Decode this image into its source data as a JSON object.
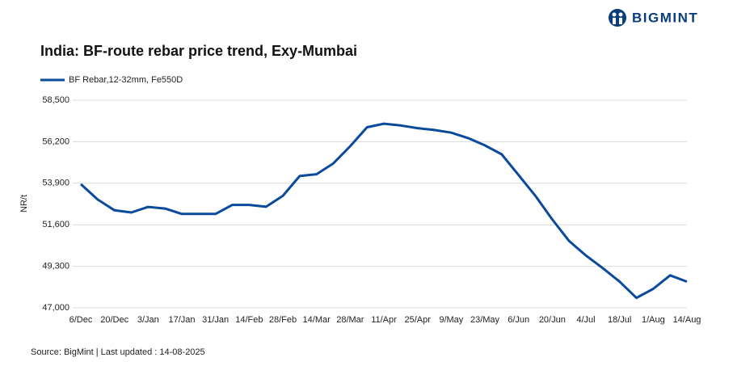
{
  "brand": "BIGMINT",
  "chart_data": {
    "type": "line",
    "title": "India: BF-route rebar price trend, Exy-Mumbai",
    "y_label": "NR/t",
    "source": "Source: BigMint | Last updated : 14-08-2025",
    "categories": [
      "6/Dec",
      null,
      "20/Dec",
      null,
      "3/Jan",
      null,
      "17/Jan",
      null,
      "31/Jan",
      null,
      "14/Feb",
      null,
      "28/Feb",
      null,
      "14/Mar",
      null,
      "28/Mar",
      null,
      "11/Apr",
      null,
      "25/Apr",
      null,
      "9/May",
      null,
      "23/May",
      null,
      "6/Jun",
      null,
      "20/Jun",
      null,
      "4/Jul",
      null,
      "18/Jul",
      null,
      "1/Aug",
      null,
      "14/Aug"
    ],
    "series": [
      {
        "name": "BF Rebar,12-32mm, Fe550D",
        "color": "#0a4a9c",
        "values": [
          53850,
          53000,
          52400,
          52280,
          52590,
          52500,
          52200,
          52200,
          52200,
          52700,
          52700,
          52600,
          53200,
          54300,
          54400,
          55000,
          55950,
          57000,
          57200,
          57100,
          56950,
          56850,
          56700,
          56400,
          56000,
          55500,
          54350,
          53200,
          51900,
          50700,
          49900,
          49200,
          48450,
          47550,
          48050,
          48800,
          48450
        ]
      }
    ],
    "ylim": [
      47000,
      58500
    ],
    "yticks": [
      {
        "value": 47000,
        "label": "47,000"
      },
      {
        "value": 49300,
        "label": "49,300"
      },
      {
        "value": 51600,
        "label": "51,600"
      },
      {
        "value": 53900,
        "label": "53,900"
      },
      {
        "value": 56200,
        "label": "56,200"
      },
      {
        "value": 58500,
        "label": "58,500"
      }
    ],
    "grid": true,
    "legend": "top-left"
  }
}
